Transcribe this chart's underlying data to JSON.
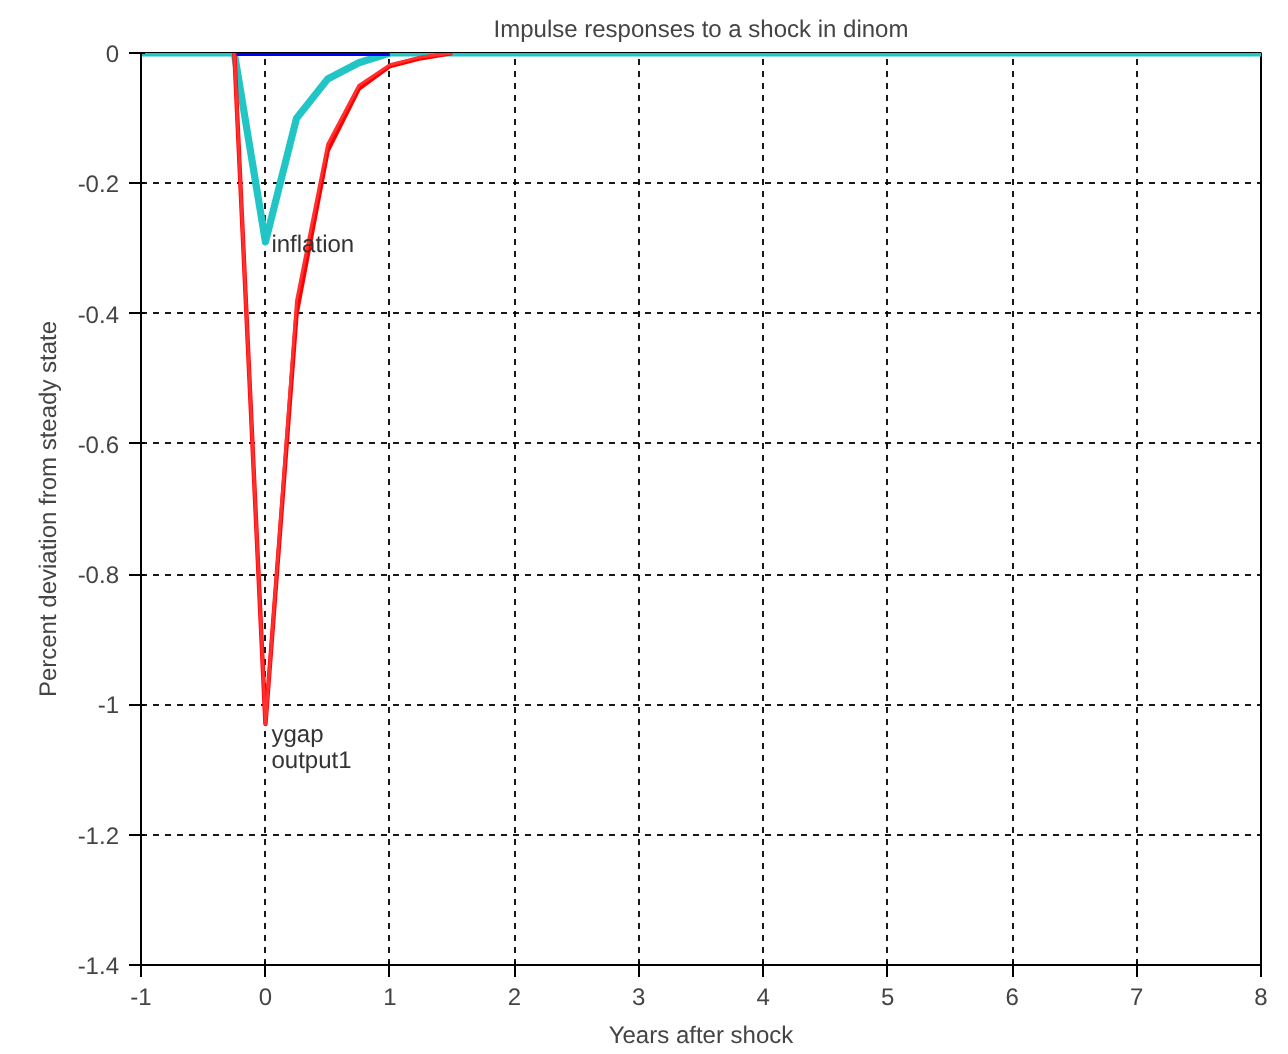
{
  "chart_data": {
    "type": "line",
    "title": "Impulse responses to a shock in dinom",
    "xlabel": "Years after shock",
    "ylabel": "Percent deviation from steady state",
    "series": [
      {
        "name": "inflation",
        "color": "#22c5c5",
        "x": [
          -1,
          -0.25,
          0,
          0.25,
          0.5,
          0.75,
          1,
          8
        ],
        "values": [
          0,
          0,
          -0.29,
          -0.1,
          -0.04,
          -0.015,
          0,
          0
        ]
      },
      {
        "color": "#0000ff",
        "x": [
          -0.25,
          0,
          0.25,
          0.5,
          0.75,
          1
        ],
        "values": [
          0,
          0,
          0,
          0,
          0,
          0
        ]
      },
      {
        "name": "ygap",
        "color": "#ff0000",
        "x": [
          -0.25,
          0,
          0.25,
          0.5,
          0.75,
          1,
          1.25,
          1.5
        ],
        "values": [
          0,
          -1.03,
          -0.4,
          -0.15,
          -0.055,
          -0.02,
          -0.008,
          0
        ]
      },
      {
        "name": "output1",
        "color": "#ff3030",
        "x": [
          -0.25,
          0,
          0.25,
          0.5,
          0.75,
          1,
          1.25,
          1.5
        ],
        "values": [
          0,
          -1.03,
          -0.38,
          -0.14,
          -0.05,
          -0.018,
          -0.006,
          0
        ]
      }
    ],
    "xlim": [
      -1,
      8
    ],
    "ylim": [
      -1.4,
      0
    ],
    "xticks": [
      -1,
      0,
      1,
      2,
      3,
      4,
      5,
      6,
      7,
      8
    ],
    "yticks": [
      -1.4,
      -1.2,
      -1,
      -0.8,
      -0.6,
      -0.4,
      -0.2,
      0
    ],
    "grid": true,
    "line_style": "solid",
    "marker": "none"
  }
}
